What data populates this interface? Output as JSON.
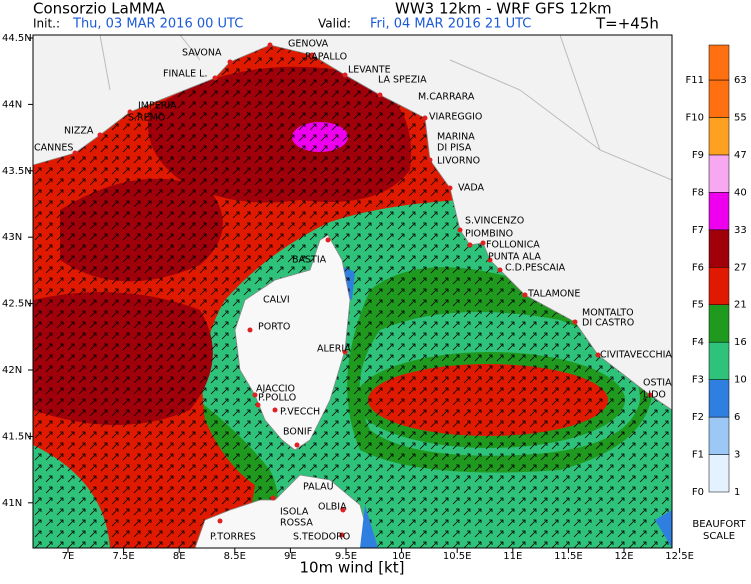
{
  "header": {
    "org": "Consorzio LaMMA",
    "model": "WW3 12km - WRF GFS 12km",
    "init_label": "Init.:",
    "init": "Thu, 03 MAR 2016  00 UTC",
    "valid_label": "Valid:",
    "valid": "Fri, 04 MAR 2016  21 UTC",
    "lead": "T=+45h"
  },
  "map": {
    "lon_ticks": [
      "7E",
      "7.5E",
      "8E",
      "8.5E",
      "9E",
      "9.5E",
      "10E",
      "10.5E",
      "11E",
      "11.5E",
      "12E",
      "12.5E"
    ],
    "lat_ticks": [
      "44.5N",
      "44N",
      "43.5N",
      "43N",
      "42.5N",
      "42N",
      "41.5N",
      "41N"
    ],
    "xlabel": "10m wind [kt]",
    "places": [
      "SAVONA",
      "GENOVA",
      "RAPALLO",
      "FINALE L.",
      "LEVANTE",
      "LA SPEZIA",
      "IMPERIA",
      "S.REMO",
      "M.CARRARA",
      "NIZZA",
      "VIAREGGIO",
      "CANNES",
      "MARINA",
      "DI PISA",
      "LIVORNO",
      "VADA",
      "S.VINCENZO",
      "PIOMBINO",
      "FOLLONICA",
      "PUNTA ALA",
      "C.D.PESCAIA",
      "BASTIA",
      "TALAMONE",
      "CALVI",
      "MONTALTO",
      "DI CASTRO",
      "PORTO",
      "ALERIA",
      "CIVITAVECCHIA",
      "AJACCIO",
      "OSTIA",
      "LIDO",
      "P.POLLO",
      "P.VECCH",
      "BONIF",
      "PALAU",
      "OLBIA",
      "ISOLA",
      "ROSSA",
      "P.TORRES",
      "S.TEODORO"
    ]
  },
  "legend": {
    "levels": [
      "F0",
      "F1",
      "F2",
      "F3",
      "F4",
      "F5",
      "F6",
      "F7",
      "F8",
      "F9",
      "F10",
      "F11"
    ],
    "values": [
      1,
      3,
      6,
      10,
      16,
      21,
      27,
      33,
      40,
      47,
      55,
      63
    ],
    "colors": [
      "#e4f1ff",
      "#9cc8f5",
      "#2f7fe0",
      "#2ec27a",
      "#1f9a1f",
      "#e01a00",
      "#a0000a",
      "#ee00ee",
      "#f8a8f0",
      "#ffa020",
      "#ff7010"
    ],
    "title_1": "BEAUFORT",
    "title_2": "SCALE"
  }
}
